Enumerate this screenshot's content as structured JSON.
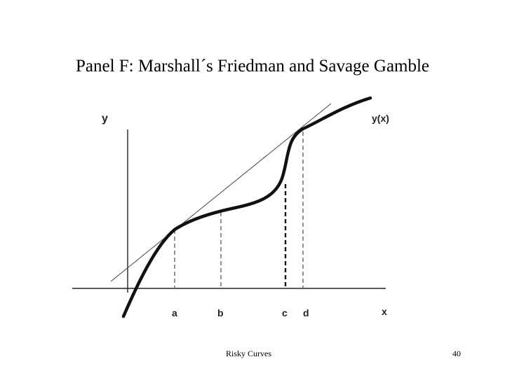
{
  "slide": {
    "title": "Panel F: Marshall´s Friedman and Savage Gamble"
  },
  "diagram": {
    "y_axis_label": "y",
    "x_axis_label": "x",
    "curve_label": "y(x)",
    "tick_labels": {
      "a": "a",
      "b": "b",
      "c": "c",
      "d": "d"
    }
  },
  "footer": {
    "center_text": "Risky Curves",
    "page_number": "40"
  }
}
